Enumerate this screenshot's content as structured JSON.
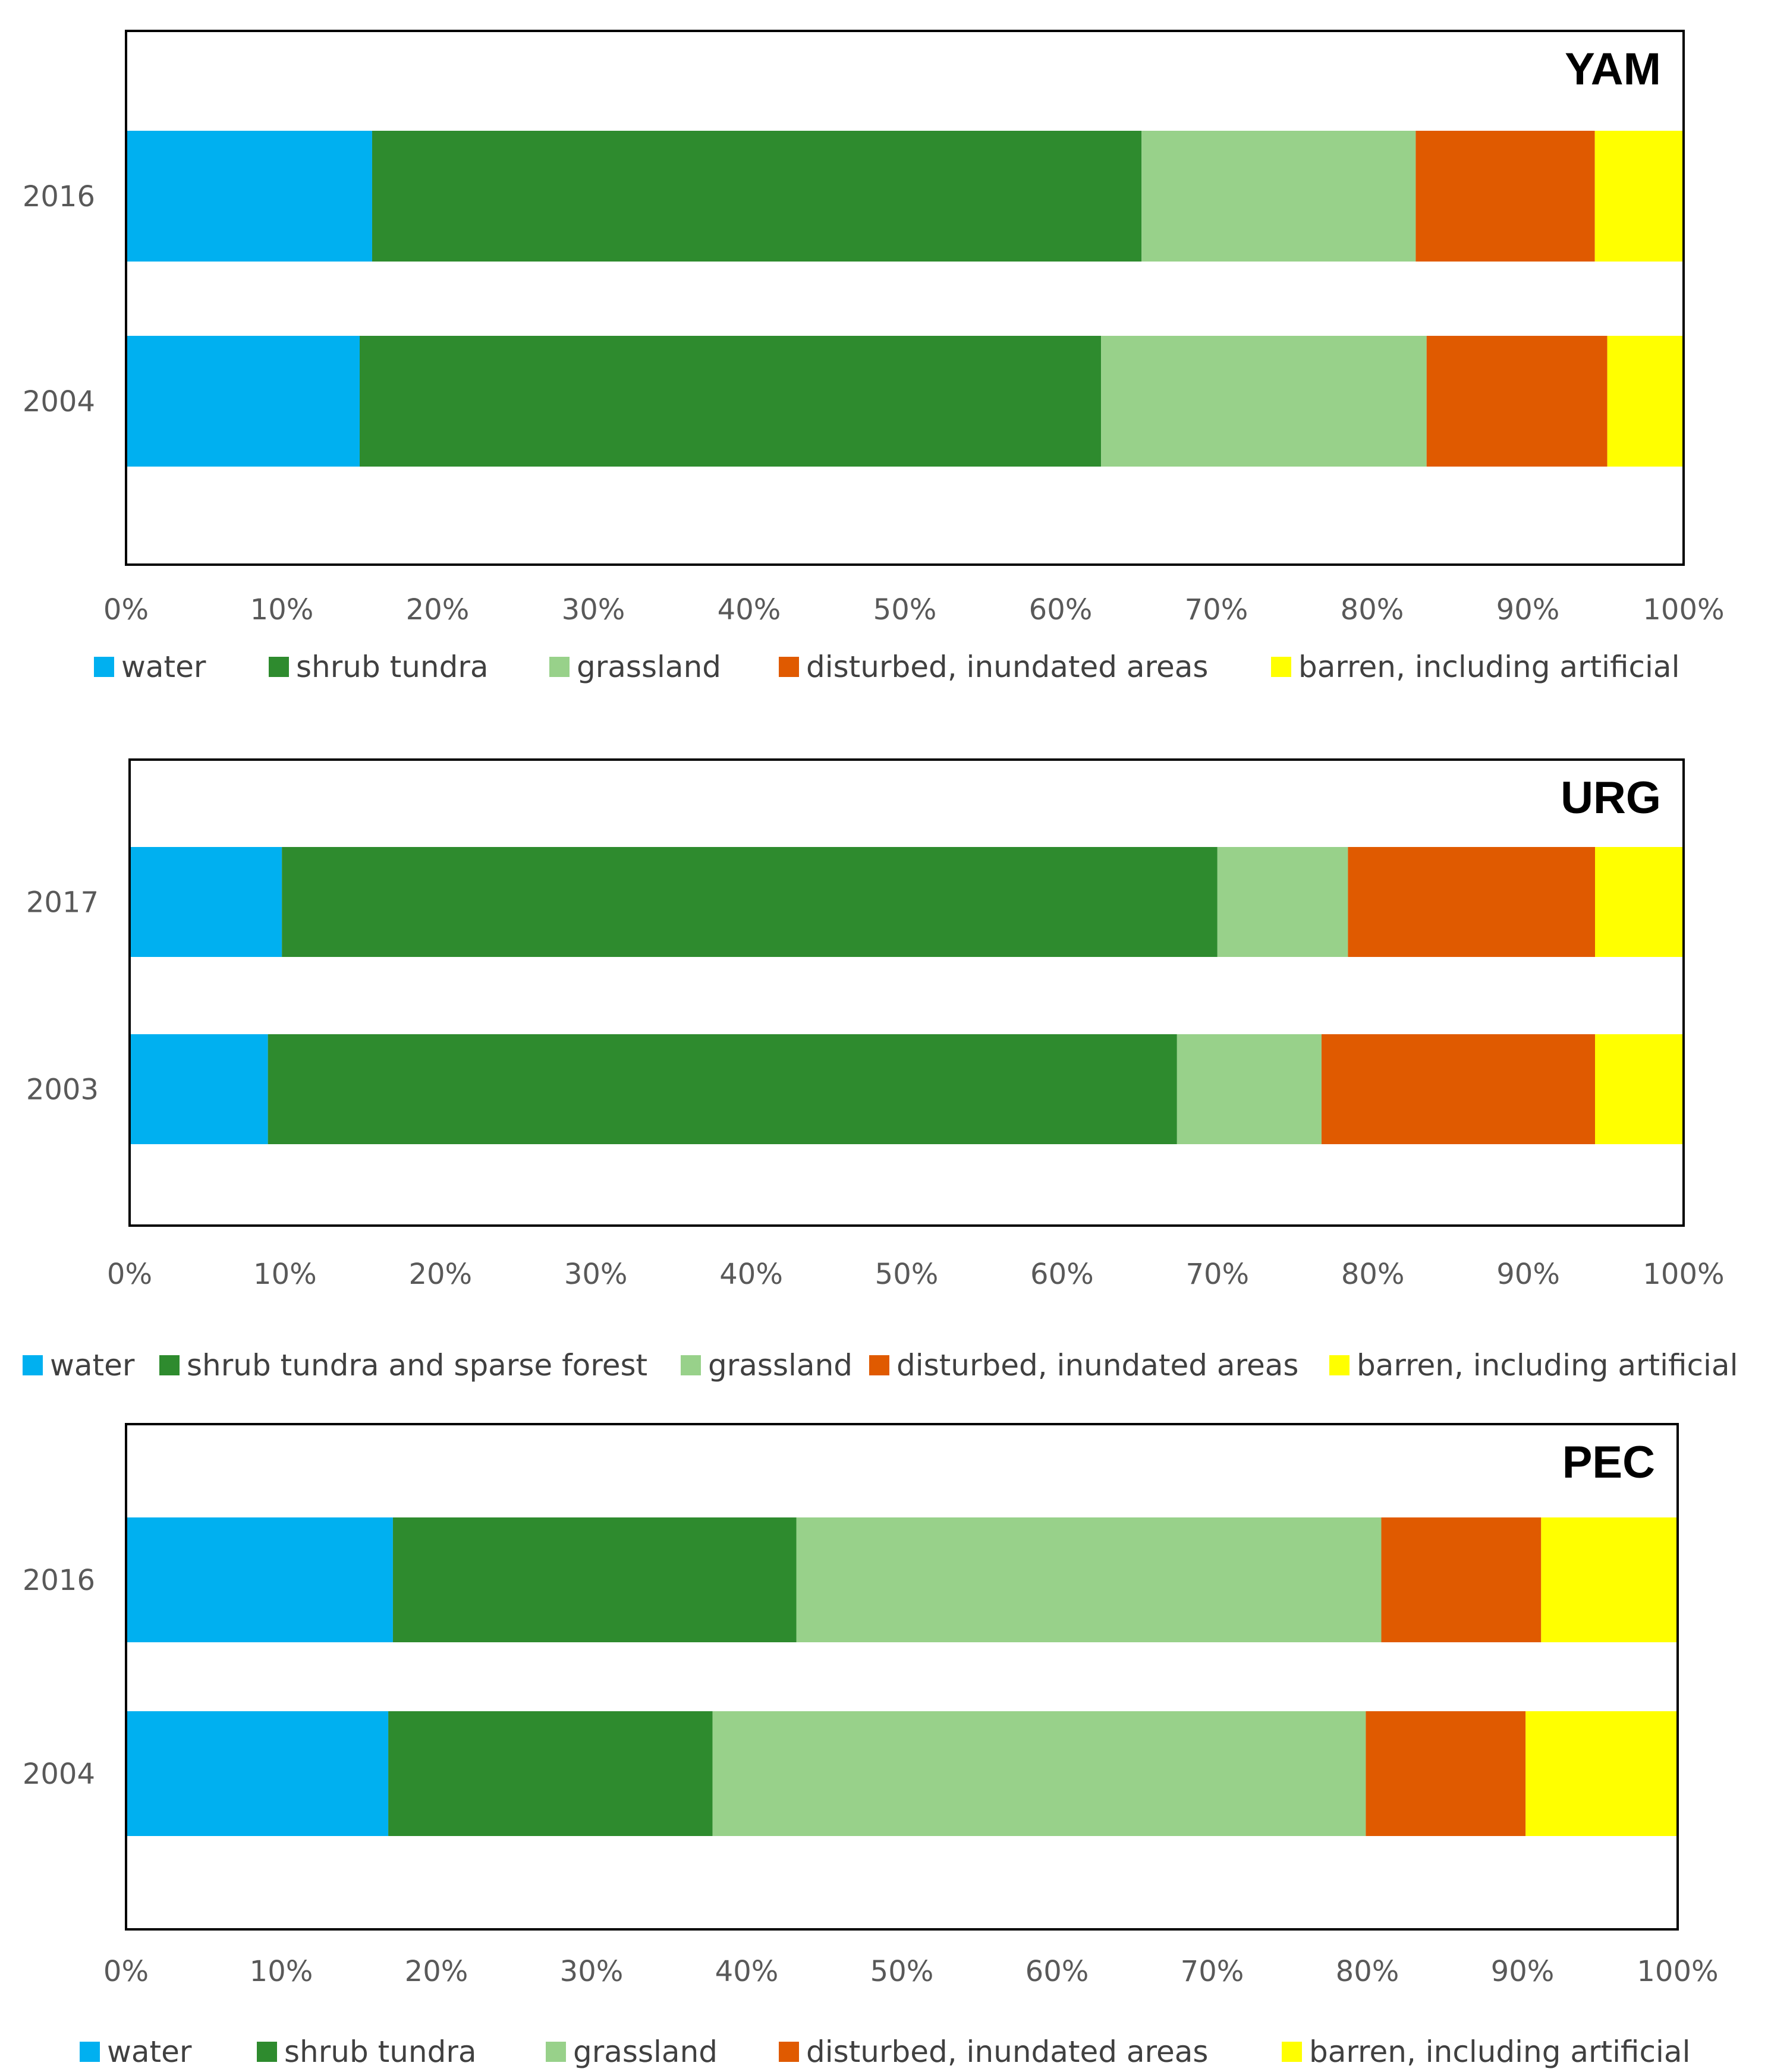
{
  "colors": {
    "water": "#00b0f0",
    "shrub": "#2e8b2e",
    "grass": "#98d18a",
    "disturbed": "#e05a00",
    "barren": "#ffff00",
    "axis": "#000000",
    "text": "#595959"
  },
  "chart_data": [
    {
      "type": "bar",
      "orientation": "horizontal",
      "stacked": "100%",
      "title": "YAM",
      "categories": [
        "2016",
        "2004"
      ],
      "xlim": [
        0,
        100
      ],
      "xticks": [
        "0%",
        "10%",
        "20%",
        "30%",
        "40%",
        "50%",
        "60%",
        "70%",
        "80%",
        "90%",
        "100%"
      ],
      "legend_position": "bottom",
      "series": [
        {
          "name": "water",
          "color_key": "water",
          "values": [
            15.8,
            15.0
          ]
        },
        {
          "name": "shrub tundra",
          "color_key": "shrub",
          "values": [
            49.4,
            47.6
          ]
        },
        {
          "name": "grassland",
          "color_key": "grass",
          "values": [
            17.6,
            20.9
          ]
        },
        {
          "name": "disturbed, inundated areas",
          "color_key": "disturbed",
          "values": [
            11.5,
            11.6
          ]
        },
        {
          "name": "barren, including artificial",
          "color_key": "barren",
          "values": [
            5.7,
            4.9
          ]
        }
      ]
    },
    {
      "type": "bar",
      "orientation": "horizontal",
      "stacked": "100%",
      "title": "URG",
      "categories": [
        "2017",
        "2003"
      ],
      "xlim": [
        0,
        100
      ],
      "xticks": [
        "0%",
        "10%",
        "20%",
        "30%",
        "40%",
        "50%",
        "60%",
        "70%",
        "80%",
        "90%",
        "100%"
      ],
      "legend_position": "bottom",
      "series": [
        {
          "name": "water",
          "color_key": "water",
          "values": [
            9.8,
            8.9
          ]
        },
        {
          "name": "shrub tundra and sparse forest",
          "color_key": "shrub",
          "values": [
            60.2,
            58.5
          ]
        },
        {
          "name": "grassland",
          "color_key": "grass",
          "values": [
            8.4,
            9.3
          ]
        },
        {
          "name": "disturbed, inundated areas",
          "color_key": "disturbed",
          "values": [
            15.9,
            17.6
          ]
        },
        {
          "name": "barren, including artificial",
          "color_key": "barren",
          "values": [
            5.7,
            5.7
          ]
        }
      ]
    },
    {
      "type": "bar",
      "orientation": "horizontal",
      "stacked": "100%",
      "title": "PEC",
      "categories": [
        "2016",
        "2004"
      ],
      "xlim": [
        0,
        100
      ],
      "xticks": [
        "0%",
        "10%",
        "20%",
        "30%",
        "40%",
        "50%",
        "60%",
        "70%",
        "80%",
        "90%",
        "100%"
      ],
      "legend_position": "bottom",
      "series": [
        {
          "name": "water",
          "color_key": "water",
          "values": [
            17.2,
            16.9
          ]
        },
        {
          "name": "shrub tundra",
          "color_key": "shrub",
          "values": [
            26.0,
            20.9
          ]
        },
        {
          "name": "grassland",
          "color_key": "grass",
          "values": [
            37.7,
            42.1
          ]
        },
        {
          "name": "disturbed, inundated areas",
          "color_key": "disturbed",
          "values": [
            10.3,
            10.3
          ]
        },
        {
          "name": "barren, including artificial",
          "color_key": "barren",
          "values": [
            8.8,
            9.8
          ]
        }
      ]
    }
  ]
}
